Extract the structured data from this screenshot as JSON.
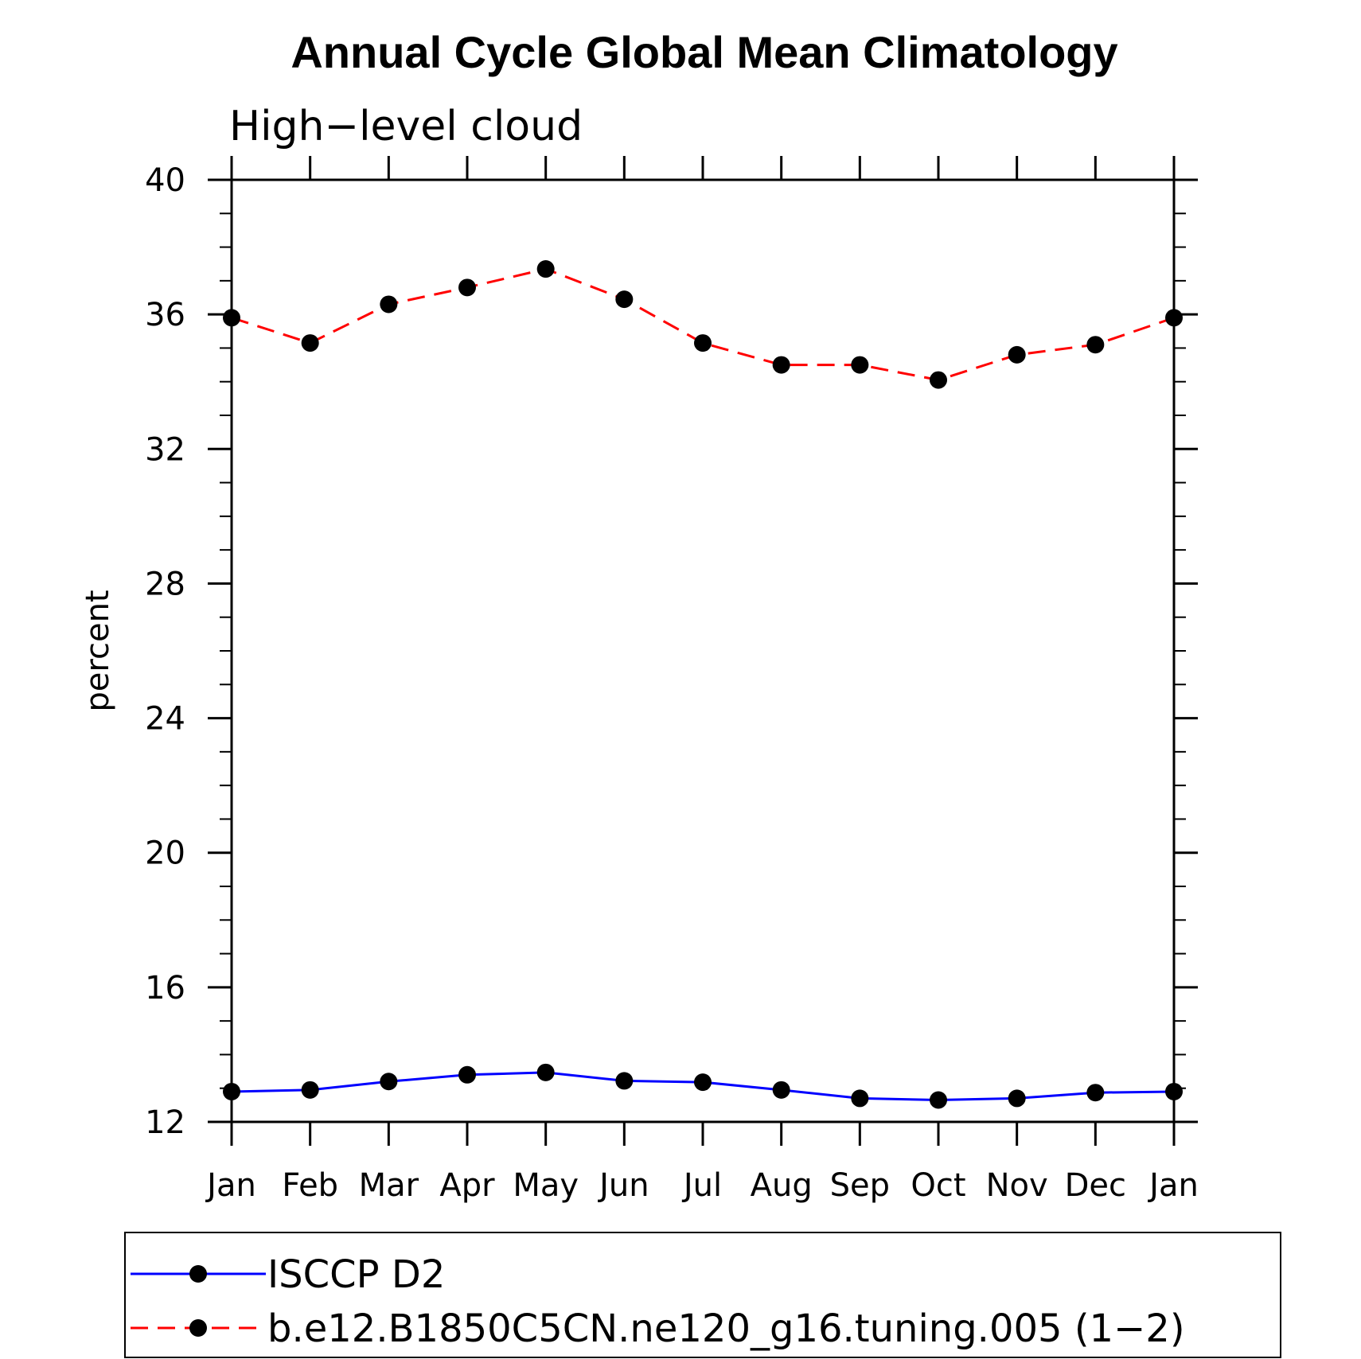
{
  "chart_data": {
    "type": "line",
    "title": "Annual Cycle Global Mean Climatology",
    "subtitle": "High−level  cloud",
    "xlabel": "",
    "ylabel": "percent",
    "categories": [
      "Jan",
      "Feb",
      "Mar",
      "Apr",
      "May",
      "Jun",
      "Jul",
      "Aug",
      "Sep",
      "Oct",
      "Nov",
      "Dec",
      "Jan"
    ],
    "ylim": [
      12,
      40
    ],
    "yticks": [
      12,
      16,
      20,
      24,
      28,
      32,
      36,
      40
    ],
    "series": [
      {
        "name": "ISCCP D2",
        "color": "#0000ff",
        "dash": "solid",
        "marker": "circle",
        "values": [
          12.9,
          12.95,
          13.2,
          13.4,
          13.47,
          13.22,
          13.18,
          12.95,
          12.7,
          12.65,
          12.7,
          12.87,
          12.9
        ]
      },
      {
        "name": "b.e12.B1850C5CN.ne120_g16.tuning.005 (1−2)",
        "color": "#ff0000",
        "dash": "dashed",
        "marker": "circle",
        "values": [
          35.9,
          35.15,
          36.3,
          36.8,
          37.35,
          36.45,
          35.15,
          34.5,
          34.5,
          34.05,
          34.8,
          35.1,
          35.9
        ]
      }
    ],
    "legend_position": "bottom",
    "grid": false
  }
}
